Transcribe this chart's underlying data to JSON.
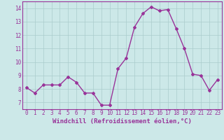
{
  "x": [
    0,
    1,
    2,
    3,
    4,
    5,
    6,
    7,
    8,
    9,
    10,
    11,
    12,
    13,
    14,
    15,
    16,
    17,
    18,
    19,
    20,
    21,
    22,
    23
  ],
  "y": [
    8.1,
    7.7,
    8.3,
    8.3,
    8.3,
    8.9,
    8.5,
    7.7,
    7.7,
    6.8,
    6.8,
    9.5,
    10.3,
    12.6,
    13.6,
    14.1,
    13.8,
    13.9,
    12.5,
    11.0,
    9.1,
    9.0,
    7.9,
    8.7
  ],
  "line_color": "#993399",
  "marker": "D",
  "marker_size": 2,
  "linewidth": 1.0,
  "xlabel": "Windchill (Refroidissement éolien,°C)",
  "xlabel_fontsize": 6.5,
  "ylim": [
    6.5,
    14.5
  ],
  "xlim": [
    -0.5,
    23.5
  ],
  "yticks": [
    7,
    8,
    9,
    10,
    11,
    12,
    13,
    14
  ],
  "xticks": [
    0,
    1,
    2,
    3,
    4,
    5,
    6,
    7,
    8,
    9,
    10,
    11,
    12,
    13,
    14,
    15,
    16,
    17,
    18,
    19,
    20,
    21,
    22,
    23
  ],
  "background_color": "#cce8e8",
  "grid_color": "#aacccc",
  "tick_fontsize": 5.5,
  "title": ""
}
